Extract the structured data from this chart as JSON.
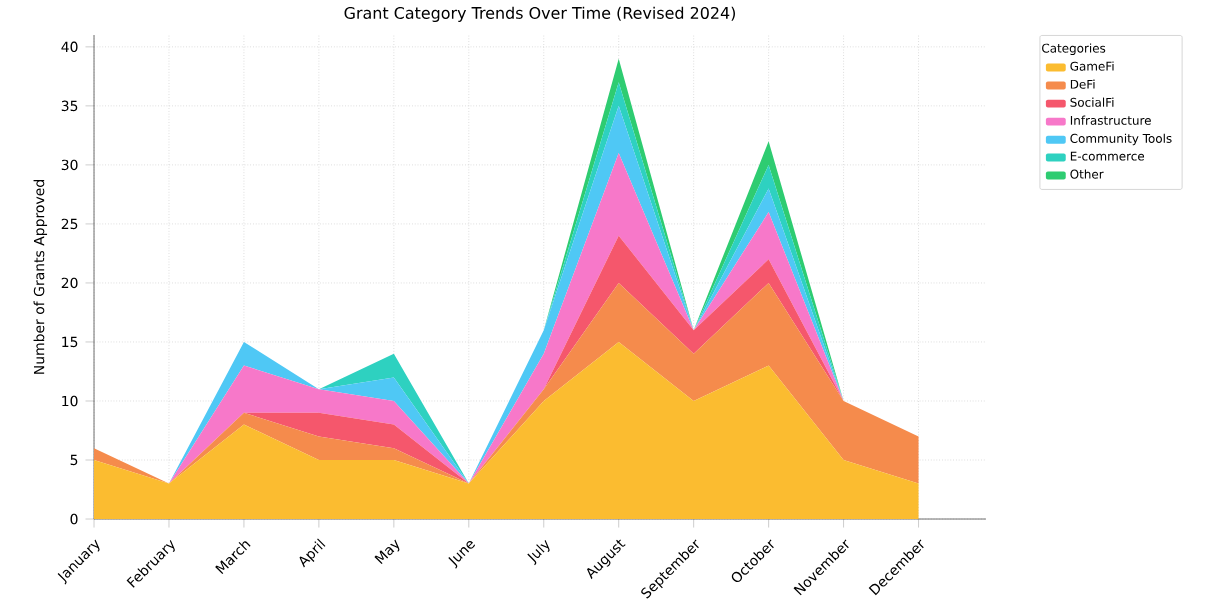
{
  "chart_data": {
    "type": "area",
    "stacked": true,
    "title": "Grant Category Trends Over Time (Revised 2024)",
    "ylabel": "Number of Grants Approved",
    "legend_title": "Categories",
    "categories": [
      "January",
      "February",
      "March",
      "April",
      "May",
      "June",
      "July",
      "August",
      "September",
      "October",
      "November",
      "December"
    ],
    "series": [
      {
        "name": "GameFi",
        "color": "#fbbc30",
        "values": [
          5,
          3,
          8,
          5,
          5,
          3,
          10,
          15,
          10,
          13,
          5,
          3
        ]
      },
      {
        "name": "DeFi",
        "color": "#f58b4c",
        "values": [
          1,
          0,
          1,
          2,
          1,
          0,
          1,
          5,
          4,
          7,
          5,
          4
        ]
      },
      {
        "name": "SocialFi",
        "color": "#f5576c",
        "values": [
          0,
          0,
          0,
          2,
          2,
          0,
          0,
          4,
          2,
          2,
          0,
          0
        ]
      },
      {
        "name": "Infrastructure",
        "color": "#f778c9",
        "values": [
          0,
          0,
          4,
          2,
          2,
          0,
          3,
          7,
          0,
          4,
          0,
          0
        ]
      },
      {
        "name": "Community Tools",
        "color": "#4fc8f5",
        "values": [
          0,
          0,
          2,
          0,
          2,
          0,
          2,
          4,
          0,
          2,
          0,
          0
        ]
      },
      {
        "name": "E-commerce",
        "color": "#2ed1c0",
        "values": [
          0,
          0,
          0,
          0,
          2,
          0,
          0,
          2,
          0,
          2,
          0,
          0
        ]
      },
      {
        "name": "Other",
        "color": "#2ecc71",
        "values": [
          0,
          0,
          0,
          0,
          0,
          0,
          0,
          2,
          0,
          2,
          0,
          0
        ]
      }
    ],
    "ylim": [
      0,
      41
    ],
    "yticks": [
      0,
      5,
      10,
      15,
      20,
      25,
      30,
      35,
      40
    ],
    "grid": true,
    "legend": "right"
  }
}
